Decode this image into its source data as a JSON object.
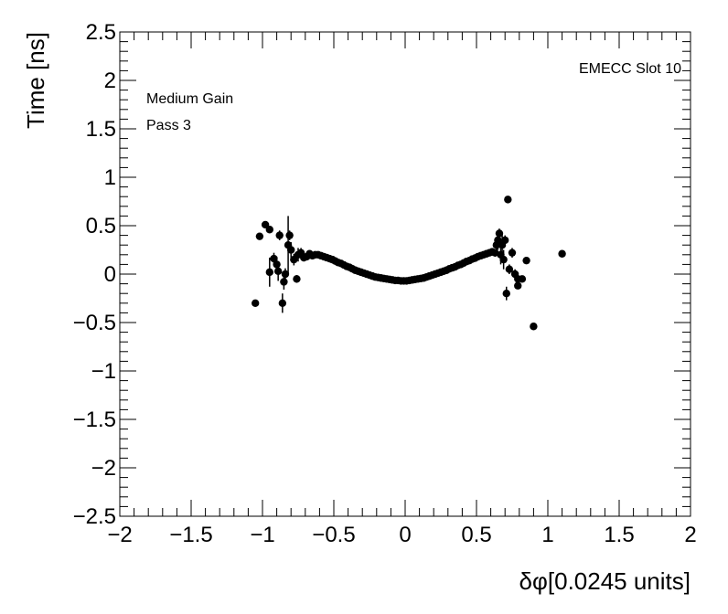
{
  "chart_data": {
    "type": "scatter",
    "title": "",
    "xlabel": "δφ[0.0245 units]",
    "ylabel": "Time [ns]",
    "xlim": [
      -2,
      2
    ],
    "ylim": [
      -2.5,
      2.5
    ],
    "xticks": [
      -2,
      -1.5,
      -1,
      -0.5,
      0,
      0.5,
      1,
      1.5,
      2
    ],
    "xtick_labels": [
      "−2",
      "−1.5",
      "−1",
      "−0.5",
      "0",
      "0.5",
      "1",
      "1.5",
      "2"
    ],
    "yticks": [
      -2.5,
      -2,
      -1.5,
      -1,
      -0.5,
      0,
      0.5,
      1,
      1.5,
      2,
      2.5
    ],
    "ytick_labels": [
      "−2.5",
      "−2",
      "−1.5",
      "−1",
      "−0.5",
      "0",
      "0.5",
      "1",
      "1.5",
      "2",
      "2.5"
    ],
    "grid": false,
    "annotations": {
      "top_right": "EMECC Slot 10",
      "top_left_line1": "Medium Gain",
      "top_left_line2": "Pass 3"
    },
    "series": [
      {
        "marker_color": "#000000",
        "points": [
          {
            "x": -1.05,
            "y": -0.3,
            "err": 0.02
          },
          {
            "x": -1.02,
            "y": 0.39,
            "err": 0.02
          },
          {
            "x": -0.98,
            "y": 0.51,
            "err": 0.02
          },
          {
            "x": -0.95,
            "y": 0.46,
            "err": 0.03
          },
          {
            "x": -0.95,
            "y": 0.02,
            "err": 0.15
          },
          {
            "x": -0.92,
            "y": 0.16,
            "err": 0.06
          },
          {
            "x": -0.9,
            "y": 0.1,
            "err": 0.08
          },
          {
            "x": -0.89,
            "y": 0.03,
            "err": 0.1
          },
          {
            "x": -0.88,
            "y": 0.4,
            "err": 0.05
          },
          {
            "x": -0.86,
            "y": -0.3,
            "err": 0.1
          },
          {
            "x": -0.85,
            "y": -0.08,
            "err": 0.08
          },
          {
            "x": -0.84,
            "y": 0.0,
            "err": 0.06
          },
          {
            "x": -0.82,
            "y": 0.3,
            "err": 0.3
          },
          {
            "x": -0.81,
            "y": 0.4,
            "err": 0.05
          },
          {
            "x": -0.8,
            "y": 0.25,
            "err": 0.08
          },
          {
            "x": -0.78,
            "y": 0.15,
            "err": 0.06
          },
          {
            "x": -0.76,
            "y": -0.05,
            "err": 0.04
          },
          {
            "x": -0.75,
            "y": 0.2,
            "err": 0.07
          },
          {
            "x": -0.73,
            "y": 0.22,
            "err": 0.05
          },
          {
            "x": -0.71,
            "y": 0.17,
            "err": 0.04
          },
          {
            "x": -0.69,
            "y": 0.18,
            "err": 0.03
          },
          {
            "x": -0.67,
            "y": 0.21,
            "err": 0.03
          },
          {
            "x": -0.65,
            "y": 0.19,
            "err": 0.02
          },
          {
            "x": -0.63,
            "y": 0.2,
            "err": 0.02
          },
          {
            "x": -0.61,
            "y": 0.2,
            "err": 0.02
          },
          {
            "x": -0.59,
            "y": 0.19,
            "err": 0.01
          },
          {
            "x": -0.57,
            "y": 0.18,
            "err": 0.01
          },
          {
            "x": -0.55,
            "y": 0.17,
            "err": 0.01
          },
          {
            "x": -0.53,
            "y": 0.16,
            "err": 0.01
          },
          {
            "x": -0.51,
            "y": 0.15,
            "err": 0.01
          },
          {
            "x": -0.49,
            "y": 0.135,
            "err": 0.01
          },
          {
            "x": -0.47,
            "y": 0.12,
            "err": 0.01
          },
          {
            "x": -0.45,
            "y": 0.11,
            "err": 0.01
          },
          {
            "x": -0.43,
            "y": 0.095,
            "err": 0.01
          },
          {
            "x": -0.41,
            "y": 0.08,
            "err": 0.01
          },
          {
            "x": -0.39,
            "y": 0.07,
            "err": 0.01
          },
          {
            "x": -0.37,
            "y": 0.055,
            "err": 0.01
          },
          {
            "x": -0.35,
            "y": 0.04,
            "err": 0.01
          },
          {
            "x": -0.33,
            "y": 0.03,
            "err": 0.01
          },
          {
            "x": -0.31,
            "y": 0.02,
            "err": 0.01
          },
          {
            "x": -0.29,
            "y": 0.01,
            "err": 0.01
          },
          {
            "x": -0.27,
            "y": 0.0,
            "err": 0.01
          },
          {
            "x": -0.25,
            "y": -0.01,
            "err": 0.01
          },
          {
            "x": -0.23,
            "y": -0.02,
            "err": 0.01
          },
          {
            "x": -0.21,
            "y": -0.03,
            "err": 0.01
          },
          {
            "x": -0.19,
            "y": -0.035,
            "err": 0.01
          },
          {
            "x": -0.17,
            "y": -0.04,
            "err": 0.01
          },
          {
            "x": -0.15,
            "y": -0.045,
            "err": 0.01
          },
          {
            "x": -0.13,
            "y": -0.05,
            "err": 0.01
          },
          {
            "x": -0.11,
            "y": -0.055,
            "err": 0.01
          },
          {
            "x": -0.09,
            "y": -0.06,
            "err": 0.01
          },
          {
            "x": -0.07,
            "y": -0.065,
            "err": 0.01
          },
          {
            "x": -0.05,
            "y": -0.065,
            "err": 0.01
          },
          {
            "x": -0.03,
            "y": -0.07,
            "err": 0.01
          },
          {
            "x": -0.01,
            "y": -0.07,
            "err": 0.01
          },
          {
            "x": 0.01,
            "y": -0.07,
            "err": 0.01
          },
          {
            "x": 0.03,
            "y": -0.065,
            "err": 0.01
          },
          {
            "x": 0.05,
            "y": -0.06,
            "err": 0.01
          },
          {
            "x": 0.07,
            "y": -0.055,
            "err": 0.01
          },
          {
            "x": 0.09,
            "y": -0.05,
            "err": 0.01
          },
          {
            "x": 0.11,
            "y": -0.045,
            "err": 0.01
          },
          {
            "x": 0.13,
            "y": -0.04,
            "err": 0.01
          },
          {
            "x": 0.15,
            "y": -0.03,
            "err": 0.01
          },
          {
            "x": 0.17,
            "y": -0.02,
            "err": 0.01
          },
          {
            "x": 0.19,
            "y": -0.01,
            "err": 0.01
          },
          {
            "x": 0.21,
            "y": 0.0,
            "err": 0.01
          },
          {
            "x": 0.23,
            "y": 0.01,
            "err": 0.01
          },
          {
            "x": 0.25,
            "y": 0.02,
            "err": 0.01
          },
          {
            "x": 0.27,
            "y": 0.03,
            "err": 0.01
          },
          {
            "x": 0.29,
            "y": 0.04,
            "err": 0.01
          },
          {
            "x": 0.31,
            "y": 0.055,
            "err": 0.01
          },
          {
            "x": 0.33,
            "y": 0.065,
            "err": 0.01
          },
          {
            "x": 0.35,
            "y": 0.075,
            "err": 0.01
          },
          {
            "x": 0.37,
            "y": 0.09,
            "err": 0.01
          },
          {
            "x": 0.39,
            "y": 0.1,
            "err": 0.01
          },
          {
            "x": 0.41,
            "y": 0.115,
            "err": 0.01
          },
          {
            "x": 0.43,
            "y": 0.13,
            "err": 0.01
          },
          {
            "x": 0.45,
            "y": 0.14,
            "err": 0.01
          },
          {
            "x": 0.47,
            "y": 0.155,
            "err": 0.01
          },
          {
            "x": 0.49,
            "y": 0.165,
            "err": 0.01
          },
          {
            "x": 0.51,
            "y": 0.18,
            "err": 0.01
          },
          {
            "x": 0.53,
            "y": 0.19,
            "err": 0.02
          },
          {
            "x": 0.55,
            "y": 0.2,
            "err": 0.02
          },
          {
            "x": 0.57,
            "y": 0.21,
            "err": 0.02
          },
          {
            "x": 0.59,
            "y": 0.22,
            "err": 0.02
          },
          {
            "x": 0.61,
            "y": 0.23,
            "err": 0.03
          },
          {
            "x": 0.63,
            "y": 0.22,
            "err": 0.04
          },
          {
            "x": 0.64,
            "y": 0.3,
            "err": 0.05
          },
          {
            "x": 0.65,
            "y": 0.35,
            "err": 0.1
          },
          {
            "x": 0.66,
            "y": 0.42,
            "err": 0.05
          },
          {
            "x": 0.67,
            "y": 0.2,
            "err": 0.1
          },
          {
            "x": 0.68,
            "y": 0.3,
            "err": 0.12
          },
          {
            "x": 0.69,
            "y": 0.15,
            "err": 0.1
          },
          {
            "x": 0.7,
            "y": 0.35,
            "err": 0.05
          },
          {
            "x": 0.71,
            "y": -0.2,
            "err": 0.07
          },
          {
            "x": 0.72,
            "y": 0.77,
            "err": 0.02
          },
          {
            "x": 0.73,
            "y": 0.05,
            "err": 0.05
          },
          {
            "x": 0.75,
            "y": 0.22,
            "err": 0.05
          },
          {
            "x": 0.77,
            "y": 0.0,
            "err": 0.05
          },
          {
            "x": 0.79,
            "y": -0.05,
            "err": 0.04
          },
          {
            "x": 0.79,
            "y": -0.12,
            "err": 0.03
          },
          {
            "x": 0.82,
            "y": -0.05,
            "err": 0.03
          },
          {
            "x": 0.85,
            "y": 0.14,
            "err": 0.02
          },
          {
            "x": 0.9,
            "y": -0.54,
            "err": 0.02
          },
          {
            "x": 1.1,
            "y": 0.21,
            "err": 0.02
          }
        ]
      }
    ]
  }
}
